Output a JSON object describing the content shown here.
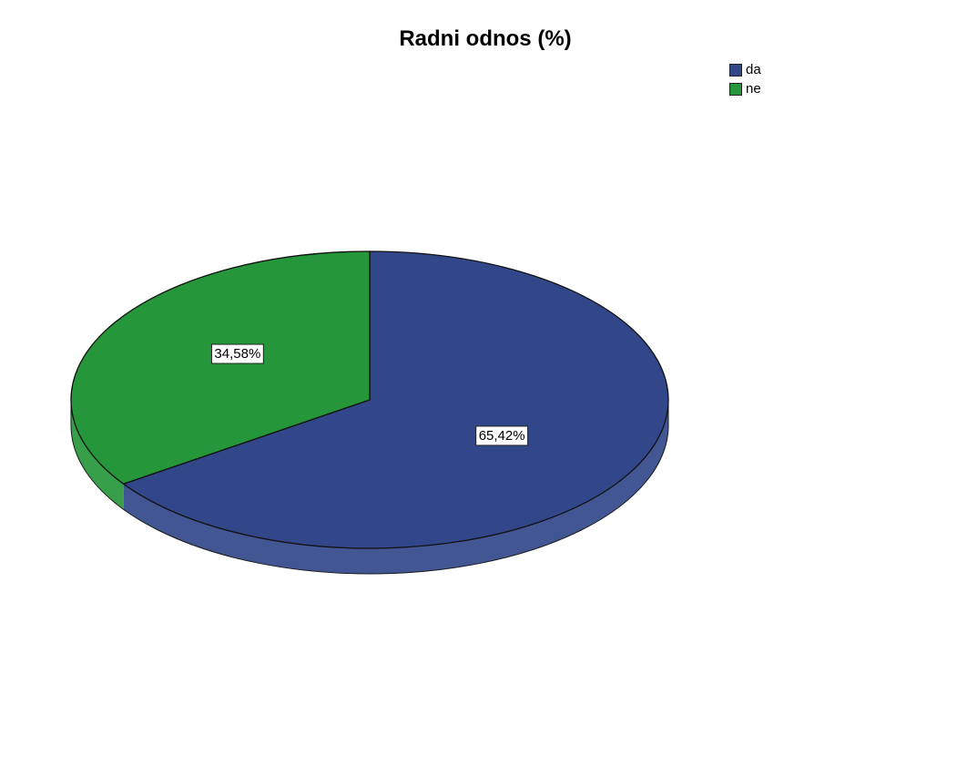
{
  "chart_data": {
    "type": "pie",
    "title": "Radni odnos (%)",
    "categories": [
      "da",
      "ne"
    ],
    "values": [
      65.42,
      34.58
    ],
    "data_labels": [
      "65,42%",
      "34,58%"
    ],
    "colors": [
      "#31478a",
      "#26963a"
    ],
    "legend_position": "top-right",
    "three_d": true
  }
}
